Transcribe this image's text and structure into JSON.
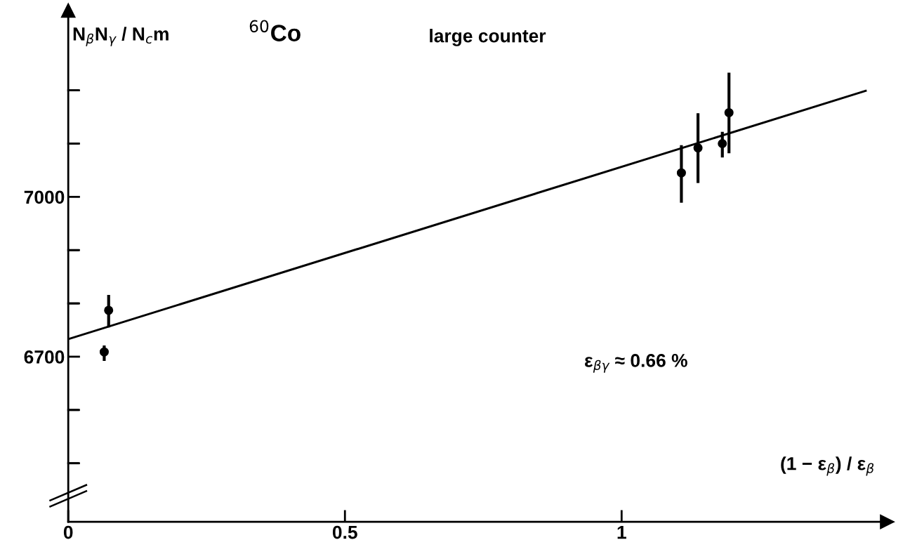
{
  "chart_data": {
    "type": "scatter",
    "title": "$^{60}$Co",
    "subtitle": "large counter",
    "xlabel": "(1 − ε$_{β}$) / ε$_{β}$",
    "ylabel": "N$_{β}$N$_{γ}$ / N$_{c}$m",
    "annotations": [
      "ε$_{βγ}$ ≈ 0.66 %"
    ],
    "xlim": [
      0,
      1.48
    ],
    "ylim": [
      6390,
      7350
    ],
    "xticks": [
      0,
      0.5,
      1
    ],
    "yticks": [
      {
        "value": 6500,
        "label": null
      },
      {
        "value": 6600,
        "label": null
      },
      6700,
      {
        "value": 6800,
        "label": null
      },
      {
        "value": 6900,
        "label": null
      },
      7000,
      {
        "value": 7100,
        "label": null
      },
      {
        "value": 7200,
        "label": null
      }
    ],
    "grid": false,
    "series": [
      {
        "marker": "circle",
        "color": "#000000",
        "x": [
          0.073,
          0.065,
          1.108,
          1.138,
          1.182,
          1.194
        ],
        "values": [
          6787,
          6709,
          7045,
          7092,
          7100,
          7158
        ],
        "errors": [
          [
            6755,
            6816
          ],
          [
            6692,
            6721
          ],
          [
            6989,
            7097
          ],
          [
            7026,
            7157
          ],
          [
            7074,
            7122
          ],
          [
            7082,
            7233
          ]
        ]
      },
      {
        "type": "line",
        "color": "#000000",
        "x": [
          0,
          1.441
        ],
        "values": [
          6733,
          7199
        ],
        "line_style": "solid"
      }
    ]
  }
}
